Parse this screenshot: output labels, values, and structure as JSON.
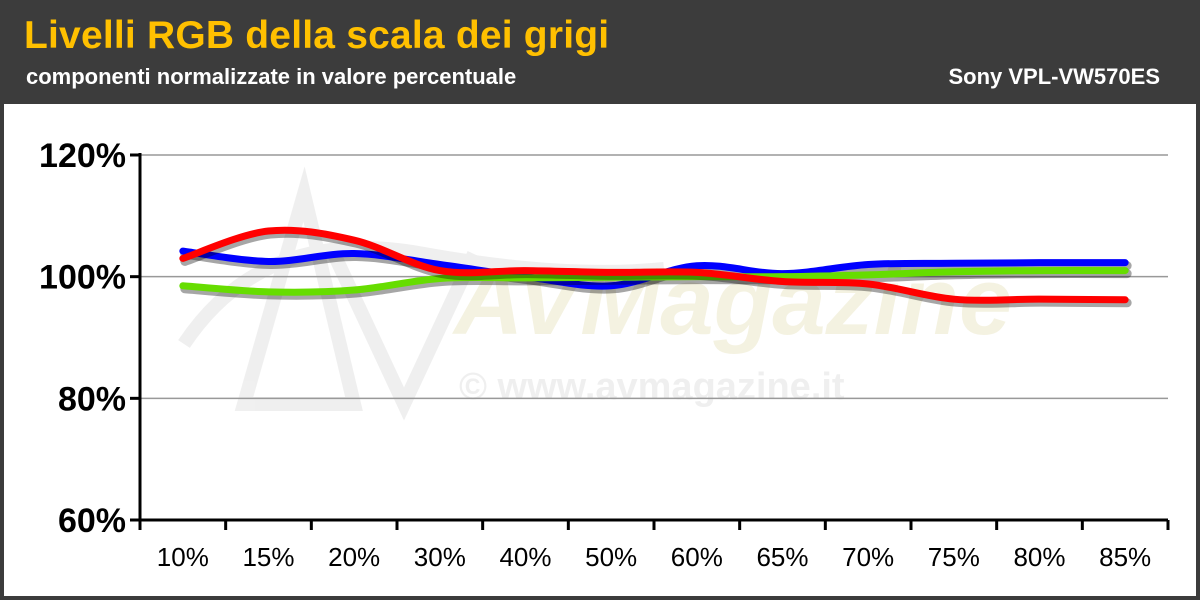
{
  "header": {
    "title": "Livelli RGB della scala dei grigi",
    "subtitle": "componenti normalizzate in valore percentuale",
    "model": "Sony VPL-VW570ES"
  },
  "watermark": {
    "text": "© www.avmagazine.it",
    "logo_text": "AVMagazine"
  },
  "colors": {
    "title": "#ffc000",
    "header_bg": "#3c3c3c",
    "red": "#ff0000",
    "green": "#66dd00",
    "blue": "#0000ff"
  },
  "chart_data": {
    "type": "line",
    "categories": [
      "10%",
      "15%",
      "20%",
      "30%",
      "40%",
      "50%",
      "60%",
      "65%",
      "70%",
      "75%",
      "80%",
      "85%"
    ],
    "ylim": [
      60,
      120
    ],
    "yticks": [
      "60%",
      "80%",
      "100%",
      "120%"
    ],
    "ytick_values": [
      60,
      80,
      100,
      120
    ],
    "grid": true,
    "series": [
      {
        "color": "#0000ff",
        "values": [
          104.2,
          102.5,
          103.8,
          102.0,
          100.0,
          98.5,
          101.8,
          100.5,
          102.0,
          102.2,
          102.3,
          102.3
        ]
      },
      {
        "color": "#66dd00",
        "values": [
          98.5,
          97.5,
          97.8,
          99.7,
          99.8,
          99.9,
          100.0,
          100.0,
          100.3,
          100.8,
          101.0,
          101.0
        ]
      },
      {
        "color": "#ff0000",
        "values": [
          103.0,
          107.5,
          106.0,
          101.0,
          101.0,
          100.7,
          100.7,
          99.2,
          98.8,
          96.3,
          96.3,
          96.2
        ]
      }
    ]
  }
}
